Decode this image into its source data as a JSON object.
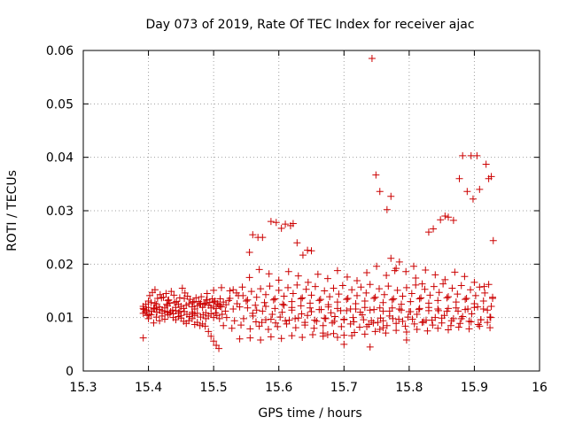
{
  "chart_data": {
    "type": "scatter",
    "title": "Day 073 of 2019, Rate Of TEC Index for receiver ajac",
    "xlabel": "GPS time / hours",
    "ylabel": "ROTI / TECUs",
    "xlim": [
      15.3,
      16.0
    ],
    "ylim": [
      0,
      0.06
    ],
    "grid": true,
    "x_ticks": [
      15.3,
      15.4,
      15.5,
      15.6,
      15.7,
      15.8,
      15.9,
      16.0
    ],
    "x_tick_labels": [
      "15.3",
      "15.4",
      "15.5",
      "15.6",
      "15.7",
      "15.8",
      "15.9",
      "16"
    ],
    "y_ticks": [
      0,
      0.01,
      0.02,
      0.03,
      0.04,
      0.05,
      0.06
    ],
    "y_tick_labels": [
      "0",
      "0.01",
      "0.02",
      "0.03",
      "0.04",
      "0.05",
      "0.06"
    ],
    "marker": "+",
    "color": "#cc0000",
    "series": [
      {
        "name": "ROTI",
        "x": [
          15.392,
          15.392,
          15.395,
          15.4,
          15.404,
          15.408,
          15.412,
          15.417,
          15.421,
          15.425,
          15.429,
          15.433,
          15.438,
          15.442,
          15.446,
          15.45,
          15.454,
          15.458,
          15.462,
          15.467,
          15.471,
          15.475,
          15.479,
          15.483,
          15.487,
          15.492,
          15.496,
          15.5,
          15.504,
          15.508,
          15.392,
          15.396,
          15.4,
          15.404,
          15.408,
          15.412,
          15.417,
          15.421,
          15.425,
          15.429,
          15.433,
          15.437,
          15.442,
          15.446,
          15.45,
          15.454,
          15.458,
          15.462,
          15.467,
          15.471,
          15.475,
          15.479,
          15.483,
          15.487,
          15.492,
          15.496,
          15.5,
          15.504,
          15.508,
          15.512,
          15.392,
          15.397,
          15.401,
          15.405,
          15.409,
          15.413,
          15.417,
          15.421,
          15.425,
          15.43,
          15.434,
          15.438,
          15.442,
          15.446,
          15.45,
          15.455,
          15.459,
          15.463,
          15.467,
          15.471,
          15.475,
          15.48,
          15.484,
          15.488,
          15.492,
          15.496,
          15.5,
          15.505,
          15.509,
          15.513,
          15.402,
          15.406,
          15.41,
          15.414,
          15.418,
          15.423,
          15.427,
          15.431,
          15.435,
          15.439,
          15.443,
          15.448,
          15.452,
          15.456,
          15.46,
          15.464,
          15.468,
          15.473,
          15.477,
          15.481,
          15.485,
          15.489,
          15.494,
          15.498,
          15.502,
          15.506,
          15.51,
          15.515,
          15.519,
          15.523,
          15.4,
          15.41,
          15.42,
          15.43,
          15.44,
          15.455,
          15.47,
          15.48,
          15.49,
          15.5,
          15.51,
          15.525,
          15.535,
          15.545,
          15.393,
          15.398,
          15.412,
          15.428,
          15.448,
          15.468,
          15.488,
          15.503,
          15.518,
          15.53,
          15.54,
          15.552,
          15.566,
          15.58,
          15.594,
          15.608,
          15.62,
          15.634,
          15.648,
          15.662,
          15.676,
          15.69,
          15.704,
          15.718,
          15.732,
          15.746,
          15.76,
          15.774,
          15.788,
          15.802,
          15.816,
          15.83,
          15.844,
          15.858,
          15.872,
          15.886,
          15.9,
          15.914,
          15.926,
          15.52,
          15.532,
          15.546,
          15.56,
          15.574,
          15.588,
          15.602,
          15.616,
          15.63,
          15.644,
          15.658,
          15.672,
          15.686,
          15.7,
          15.714,
          15.728,
          15.742,
          15.756,
          15.77,
          15.784,
          15.798,
          15.812,
          15.826,
          15.84,
          15.854,
          15.868,
          15.882,
          15.896,
          15.91,
          15.924,
          15.515,
          15.528,
          15.542,
          15.556,
          15.57,
          15.584,
          15.598,
          15.612,
          15.626,
          15.64,
          15.654,
          15.668,
          15.682,
          15.696,
          15.71,
          15.724,
          15.738,
          15.752,
          15.766,
          15.78,
          15.794,
          15.808,
          15.822,
          15.836,
          15.85,
          15.864,
          15.878,
          15.892,
          15.906,
          15.92,
          15.525,
          15.538,
          15.552,
          15.566,
          15.58,
          15.594,
          15.608,
          15.622,
          15.636,
          15.65,
          15.664,
          15.678,
          15.692,
          15.706,
          15.72,
          15.734,
          15.748,
          15.762,
          15.776,
          15.79,
          15.804,
          15.818,
          15.832,
          15.846,
          15.86,
          15.874,
          15.888,
          15.902,
          15.916,
          15.928,
          15.53,
          15.544,
          15.558,
          15.572,
          15.586,
          15.6,
          15.614,
          15.628,
          15.642,
          15.656,
          15.67,
          15.684,
          15.698,
          15.712,
          15.726,
          15.74,
          15.754,
          15.768,
          15.782,
          15.796,
          15.81,
          15.824,
          15.838,
          15.852,
          15.866,
          15.88,
          15.894,
          15.908,
          15.922,
          15.536,
          15.55,
          15.564,
          15.578,
          15.592,
          15.606,
          15.62,
          15.634,
          15.648,
          15.662,
          15.676,
          15.69,
          15.704,
          15.718,
          15.732,
          15.746,
          15.76,
          15.774,
          15.788,
          15.802,
          15.816,
          15.83,
          15.844,
          15.858,
          15.872,
          15.886,
          15.9,
          15.914,
          15.928,
          15.54,
          15.556,
          15.572,
          15.588,
          15.604,
          15.62,
          15.636,
          15.652,
          15.668,
          15.684,
          15.7,
          15.716,
          15.732,
          15.748,
          15.764,
          15.78,
          15.796,
          15.812,
          15.828,
          15.844,
          15.86,
          15.876,
          15.892,
          15.908,
          15.924,
          15.555,
          15.57,
          15.585,
          15.6,
          15.615,
          15.63,
          15.645,
          15.66,
          15.675,
          15.69,
          15.705,
          15.72,
          15.735,
          15.75,
          15.765,
          15.78,
          15.795,
          15.81,
          15.825,
          15.84,
          15.855,
          15.87,
          15.885,
          15.9,
          15.915,
          15.56,
          15.575,
          15.59,
          15.605,
          15.62,
          15.635,
          15.65,
          15.665,
          15.68,
          15.695,
          15.71,
          15.725,
          15.74,
          15.755,
          15.77,
          15.785,
          15.8,
          15.815,
          15.83,
          15.845,
          15.86,
          15.875,
          15.89,
          15.905,
          15.92,
          15.565,
          15.58,
          15.595,
          15.61,
          15.625,
          15.64,
          15.655,
          15.67,
          15.685,
          15.7,
          15.715,
          15.73,
          15.745,
          15.76,
          15.775,
          15.79,
          15.805,
          15.82,
          15.835,
          15.85,
          15.865,
          15.88,
          15.895,
          15.91,
          15.925,
          15.49,
          15.5,
          15.512,
          15.74,
          15.7,
          15.796,
          15.69,
          15.675,
          15.668,
          15.712,
          15.755,
          15.735,
          15.76,
          15.778,
          15.807,
          15.82,
          15.772,
          15.785,
          15.743,
          15.749,
          15.755,
          15.766,
          15.772,
          15.83,
          15.837,
          15.848,
          15.855,
          15.86,
          15.868,
          15.877,
          15.882,
          15.889,
          15.895,
          15.898,
          15.904,
          15.908,
          15.918,
          15.922,
          15.926,
          15.929,
          15.555,
          15.56,
          15.568,
          15.575,
          15.588,
          15.596,
          15.604,
          15.61,
          15.618,
          15.622,
          15.628,
          15.637,
          15.644,
          15.65
        ],
        "y": [
          0.0117,
          0.0062,
          0.0111,
          0.0098,
          0.0105,
          0.009,
          0.0101,
          0.0094,
          0.0103,
          0.0097,
          0.011,
          0.0108,
          0.01,
          0.0096,
          0.0102,
          0.0099,
          0.0093,
          0.0089,
          0.0094,
          0.0098,
          0.0087,
          0.0091,
          0.0085,
          0.0088,
          0.0084,
          0.0074,
          0.0065,
          0.0056,
          0.0048,
          0.0042,
          0.0121,
          0.0125,
          0.0119,
          0.0128,
          0.0116,
          0.0124,
          0.012,
          0.0113,
          0.0118,
          0.0122,
          0.0127,
          0.0114,
          0.0119,
          0.0125,
          0.0121,
          0.0117,
          0.0123,
          0.0126,
          0.012,
          0.0116,
          0.0122,
          0.0125,
          0.0119,
          0.0127,
          0.0123,
          0.0118,
          0.0121,
          0.0117,
          0.0124,
          0.012,
          0.0108,
          0.0114,
          0.0106,
          0.0112,
          0.0117,
          0.011,
          0.0115,
          0.0108,
          0.0112,
          0.0105,
          0.0111,
          0.0107,
          0.0113,
          0.0109,
          0.0104,
          0.0111,
          0.0106,
          0.0102,
          0.011,
          0.0104,
          0.0108,
          0.0101,
          0.0105,
          0.0109,
          0.0103,
          0.0107,
          0.01,
          0.0104,
          0.0098,
          0.0106,
          0.0141,
          0.0147,
          0.0152,
          0.0136,
          0.0143,
          0.0138,
          0.0145,
          0.0133,
          0.0149,
          0.0142,
          0.013,
          0.0137,
          0.0155,
          0.0146,
          0.014,
          0.0134,
          0.0128,
          0.0137,
          0.013,
          0.0139,
          0.0125,
          0.0133,
          0.0128,
          0.0135,
          0.0131,
          0.0126,
          0.0121,
          0.0129,
          0.0124,
          0.0132,
          0.0131,
          0.0127,
          0.0137,
          0.0132,
          0.0128,
          0.0136,
          0.013,
          0.0126,
          0.0133,
          0.0129,
          0.0135,
          0.015,
          0.0146,
          0.0141,
          0.0115,
          0.0104,
          0.0118,
          0.0125,
          0.0112,
          0.0107,
          0.0098,
          0.0109,
          0.0112,
          0.0116,
          0.012,
          0.0118,
          0.0114,
          0.0121,
          0.0117,
          0.0123,
          0.0119,
          0.0122,
          0.0118,
          0.0115,
          0.012,
          0.0117,
          0.0113,
          0.0116,
          0.0119,
          0.0115,
          0.0112,
          0.0118,
          0.0114,
          0.0111,
          0.0117,
          0.0113,
          0.0116,
          0.0112,
          0.0118,
          0.0115,
          0.0119,
          0.0116,
          0.0121,
          0.01,
          0.0094,
          0.0098,
          0.0103,
          0.0091,
          0.0097,
          0.0101,
          0.0095,
          0.0099,
          0.0104,
          0.0093,
          0.0098,
          0.0102,
          0.0096,
          0.01,
          0.0105,
          0.0094,
          0.0099,
          0.0103,
          0.0097,
          0.0101,
          0.0106,
          0.0095,
          0.01,
          0.0104,
          0.0098,
          0.0102,
          0.0107,
          0.0096,
          0.0101,
          0.0085,
          0.008,
          0.0086,
          0.0079,
          0.0084,
          0.0078,
          0.0083,
          0.0088,
          0.0081,
          0.0086,
          0.008,
          0.0085,
          0.009,
          0.0083,
          0.0088,
          0.0082,
          0.0087,
          0.0091,
          0.0085,
          0.0089,
          0.0084,
          0.0088,
          0.0092,
          0.0086,
          0.009,
          0.0085,
          0.0089,
          0.0093,
          0.0087,
          0.0091,
          0.0136,
          0.0141,
          0.0133,
          0.0138,
          0.0143,
          0.0135,
          0.014,
          0.0145,
          0.0137,
          0.0142,
          0.0134,
          0.0139,
          0.0144,
          0.0136,
          0.0141,
          0.0146,
          0.0138,
          0.0143,
          0.0135,
          0.014,
          0.0145,
          0.0137,
          0.0142,
          0.0147,
          0.0139,
          0.0144,
          0.0136,
          0.0141,
          0.0146,
          0.0138,
          0.0152,
          0.0157,
          0.0149,
          0.0154,
          0.0159,
          0.0151,
          0.0156,
          0.0161,
          0.0153,
          0.0158,
          0.015,
          0.0155,
          0.016,
          0.0152,
          0.0157,
          0.0162,
          0.0154,
          0.0159,
          0.0151,
          0.0156,
          0.0161,
          0.0153,
          0.0158,
          0.0163,
          0.0155,
          0.016,
          0.0152,
          0.0157,
          0.0162,
          0.0126,
          0.0131,
          0.0123,
          0.0128,
          0.0133,
          0.0125,
          0.013,
          0.0135,
          0.0127,
          0.0132,
          0.0124,
          0.0129,
          0.0134,
          0.0126,
          0.0131,
          0.0136,
          0.0128,
          0.0133,
          0.0125,
          0.013,
          0.0135,
          0.0127,
          0.0132,
          0.0137,
          0.0129,
          0.0134,
          0.0126,
          0.0131,
          0.0136,
          0.006,
          0.0062,
          0.0058,
          0.0064,
          0.0061,
          0.0066,
          0.0063,
          0.0068,
          0.0065,
          0.007,
          0.0067,
          0.0072,
          0.0069,
          0.0074,
          0.0071,
          0.0076,
          0.0073,
          0.0078,
          0.0075,
          0.008,
          0.0077,
          0.0082,
          0.0079,
          0.0084,
          0.0081,
          0.0175,
          0.019,
          0.0182,
          0.017,
          0.0186,
          0.0178,
          0.0166,
          0.0181,
          0.0173,
          0.0188,
          0.0176,
          0.0169,
          0.0184,
          0.0196,
          0.0179,
          0.0192,
          0.0186,
          0.0174,
          0.0189,
          0.018,
          0.0171,
          0.0185,
          0.0177,
          0.0166,
          0.0158,
          0.0108,
          0.0112,
          0.0106,
          0.011,
          0.0114,
          0.0107,
          0.0111,
          0.0115,
          0.0109,
          0.0113,
          0.0116,
          0.011,
          0.0114,
          0.0118,
          0.0112,
          0.0116,
          0.0111,
          0.0115,
          0.0119,
          0.0113,
          0.0117,
          0.0112,
          0.0116,
          0.012,
          0.0114,
          0.0092,
          0.0096,
          0.009,
          0.0094,
          0.0098,
          0.0091,
          0.0095,
          0.0099,
          0.0093,
          0.0097,
          0.0092,
          0.0096,
          0.009,
          0.0094,
          0.0098,
          0.0093,
          0.0097,
          0.0091,
          0.0095,
          0.0099,
          0.0094,
          0.0098,
          0.0092,
          0.0096,
          0.01,
          0.0145,
          0.0151,
          0.0156,
          0.0045,
          0.005,
          0.0058,
          0.0063,
          0.0068,
          0.0071,
          0.0066,
          0.0078,
          0.0083,
          0.0081,
          0.0188,
          0.0196,
          0.0163,
          0.0211,
          0.0204,
          0.0585,
          0.0367,
          0.0336,
          0.0302,
          0.0327,
          0.026,
          0.0266,
          0.0283,
          0.029,
          0.0288,
          0.0282,
          0.036,
          0.0403,
          0.0336,
          0.0403,
          0.0322,
          0.0403,
          0.034,
          0.0387,
          0.036,
          0.0364,
          0.0244,
          0.0222,
          0.0255,
          0.025,
          0.025,
          0.028,
          0.0278,
          0.0267,
          0.0275,
          0.0272,
          0.0276,
          0.024,
          0.0217,
          0.0226,
          0.0225
        ]
      }
    ]
  }
}
